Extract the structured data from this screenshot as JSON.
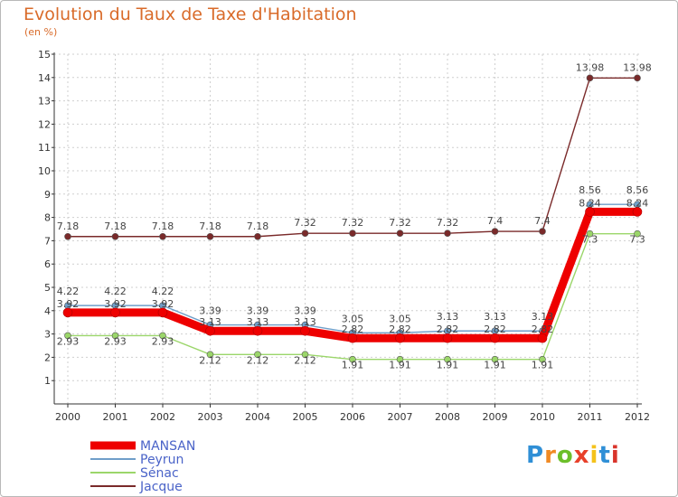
{
  "header": {
    "title": "Evolution du Taux de Taxe d'Habitation",
    "unit": "(en %)"
  },
  "colors": {
    "accent": "#d96b2a",
    "axis": "#333333",
    "grid": "#cfcfcf"
  },
  "chart_data": {
    "type": "line",
    "title": "Evolution du Taux de Taxe d'Habitation",
    "ylabel": "(en %)",
    "xlabel": "",
    "ylim": [
      1,
      15
    ],
    "yticks": [
      1,
      2,
      3,
      4,
      5,
      6,
      7,
      8,
      9,
      10,
      11,
      12,
      13,
      14,
      15
    ],
    "grid": true,
    "legend": "bottom-left",
    "x": [
      "2000",
      "2001",
      "2002",
      "2003",
      "2004",
      "2005",
      "2006",
      "2007",
      "2008",
      "2009",
      "2010",
      "2011",
      "2012"
    ],
    "series": [
      {
        "name": "MANSAN",
        "color": "#ee0000",
        "values": [
          3.92,
          3.92,
          3.92,
          3.13,
          3.13,
          3.13,
          2.82,
          2.82,
          2.82,
          2.82,
          2.82,
          8.24,
          8.24
        ]
      },
      {
        "name": "Peyrun",
        "color": "#6f9ec9",
        "values": [
          4.22,
          4.22,
          4.22,
          3.39,
          3.39,
          3.39,
          3.05,
          3.05,
          3.13,
          3.13,
          3.13,
          8.56,
          8.56
        ]
      },
      {
        "name": "Sénac",
        "color": "#9bd66a",
        "values": [
          2.93,
          2.93,
          2.93,
          2.12,
          2.12,
          2.12,
          1.91,
          1.91,
          1.91,
          1.91,
          1.91,
          7.3,
          7.3
        ]
      },
      {
        "name": "Jacque",
        "color": "#7a2a2a",
        "values": [
          7.18,
          7.18,
          7.18,
          7.18,
          7.18,
          7.32,
          7.32,
          7.32,
          7.32,
          7.4,
          7.4,
          13.98,
          13.98
        ]
      }
    ]
  },
  "legend": {
    "items": [
      {
        "label": "MANSAN",
        "color": "#ee0000"
      },
      {
        "label": "Peyrun",
        "color": "#6f9ec9"
      },
      {
        "label": "Sénac",
        "color": "#9bd66a"
      },
      {
        "label": "Jacque",
        "color": "#7a2a2a"
      }
    ]
  },
  "logo": {
    "text": "Proxiti",
    "colors": [
      "#2f8fd6",
      "#f08a24",
      "#6cbf2a",
      "#e8402a",
      "#f4c21b",
      "#2f8fd6",
      "#d9342b"
    ]
  }
}
